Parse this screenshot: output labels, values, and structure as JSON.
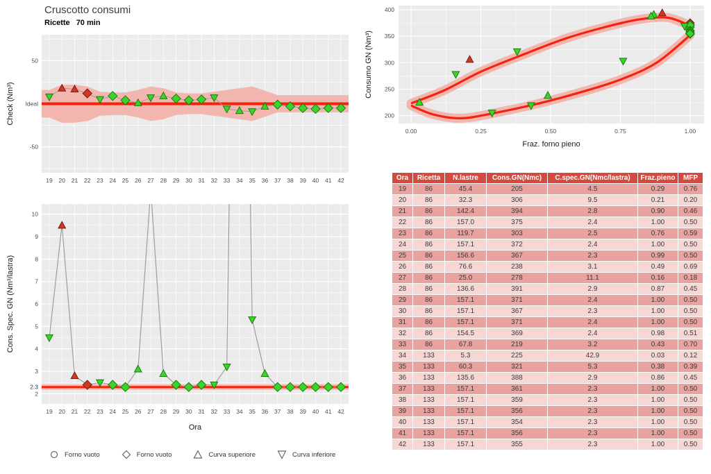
{
  "header": {
    "title": "Cruscotto consumi",
    "subtitle_label": "Ricette",
    "subtitle_value": "70 min"
  },
  "colors": {
    "accent_red": "#f2230f",
    "band_pink": "#f2b6ae",
    "marker_green": "#3bd42a",
    "marker_green_stroke": "#1d7a0e",
    "marker_red": "#cb3a28",
    "marker_red_stroke": "#7e150c",
    "panel_bg": "#ebebeb",
    "grid": "#ffffff",
    "table_header_bg": "#d6493f",
    "row_dark": "#e9a29d",
    "row_light": "#f6d7d3"
  },
  "legend": {
    "items": [
      {
        "shape": "circle",
        "label": "Forno vuoto"
      },
      {
        "shape": "diamond",
        "label": "Forno vuoto"
      },
      {
        "shape": "triangle-up",
        "label": "Curva superiore"
      },
      {
        "shape": "triangle-down",
        "label": "Curva inferiore"
      }
    ]
  },
  "table": {
    "headers": [
      "Ora",
      "Ricetta",
      "N.lastre",
      "Cons.GN(Nmc)",
      "C.spec.GN(Nmc/lastra)",
      "Fraz.pieno",
      "MFP"
    ],
    "rows": [
      [
        "19",
        "86",
        "45.4",
        "205",
        "4.5",
        "0.29",
        "0.76"
      ],
      [
        "20",
        "86",
        "32.3",
        "306",
        "9.5",
        "0.21",
        "0.20"
      ],
      [
        "21",
        "86",
        "142.4",
        "394",
        "2.8",
        "0.90",
        "0.46"
      ],
      [
        "22",
        "86",
        "157.0",
        "375",
        "2.4",
        "1.00",
        "0.50"
      ],
      [
        "23",
        "86",
        "119.7",
        "303",
        "2.5",
        "0.76",
        "0.59"
      ],
      [
        "24",
        "86",
        "157.1",
        "372",
        "2.4",
        "1.00",
        "0.50"
      ],
      [
        "25",
        "86",
        "156.6",
        "367",
        "2.3",
        "0.99",
        "0.50"
      ],
      [
        "26",
        "86",
        "76.6",
        "238",
        "3.1",
        "0.49",
        "0.69"
      ],
      [
        "27",
        "86",
        "25.0",
        "278",
        "11.1",
        "0.16",
        "0.18"
      ],
      [
        "28",
        "86",
        "136.6",
        "391",
        "2.9",
        "0.87",
        "0.45"
      ],
      [
        "29",
        "86",
        "157.1",
        "371",
        "2.4",
        "1.00",
        "0.50"
      ],
      [
        "30",
        "86",
        "157.1",
        "367",
        "2.3",
        "1.00",
        "0.50"
      ],
      [
        "31",
        "86",
        "157.1",
        "371",
        "2.4",
        "1.00",
        "0.50"
      ],
      [
        "32",
        "86",
        "154.5",
        "369",
        "2.4",
        "0.98",
        "0.51"
      ],
      [
        "33",
        "86",
        "67.8",
        "219",
        "3.2",
        "0.43",
        "0.70"
      ],
      [
        "34",
        "133",
        "5.3",
        "225",
        "42.9",
        "0.03",
        "0.12"
      ],
      [
        "35",
        "133",
        "60.3",
        "321",
        "5.3",
        "0.38",
        "0.39"
      ],
      [
        "36",
        "133",
        "135.6",
        "388",
        "2.9",
        "0.86",
        "0.45"
      ],
      [
        "37",
        "133",
        "157.1",
        "361",
        "2.3",
        "1.00",
        "0.50"
      ],
      [
        "38",
        "133",
        "157.1",
        "359",
        "2.3",
        "1.00",
        "0.50"
      ],
      [
        "39",
        "133",
        "157.1",
        "356",
        "2.3",
        "1.00",
        "0.50"
      ],
      [
        "40",
        "133",
        "157.1",
        "354",
        "2.3",
        "1.00",
        "0.50"
      ],
      [
        "41",
        "133",
        "157.1",
        "356",
        "2.3",
        "1.00",
        "0.50"
      ],
      [
        "42",
        "133",
        "157.1",
        "355",
        "2.3",
        "1.00",
        "0.50"
      ]
    ]
  },
  "chart_data": [
    {
      "type": "scatter",
      "name": "check",
      "title": "",
      "ylabel": "Check (Nm³)",
      "xlabel": "",
      "x": [
        19,
        20,
        21,
        22,
        23,
        24,
        25,
        26,
        27,
        28,
        29,
        30,
        31,
        32,
        33,
        34,
        35,
        36,
        37,
        38,
        39,
        40,
        41,
        42
      ],
      "values": [
        8,
        18,
        17,
        12,
        5,
        9,
        4,
        1,
        7,
        9,
        6,
        4,
        5,
        7,
        -6,
        -8,
        -9,
        -3,
        -1,
        -3,
        -5,
        -6,
        -5,
        -5
      ],
      "band_halfwidth": [
        16,
        22,
        22,
        20,
        14,
        13,
        13,
        16,
        20,
        18,
        13,
        12,
        12,
        14,
        16,
        18,
        20,
        15,
        10,
        10,
        10,
        10,
        10,
        10
      ],
      "ideal_value": 0,
      "ideal_label": "Ideal",
      "yticks": [
        -50,
        50
      ],
      "ylim": [
        -80,
        80
      ],
      "marker_shapes": [
        "td",
        "tu",
        "tu",
        "d",
        "td",
        "d",
        "d",
        "tu",
        "td",
        "tu",
        "d",
        "d",
        "d",
        "td",
        "td",
        "tu",
        "td",
        "tu",
        "d",
        "d",
        "d",
        "d",
        "d",
        "d"
      ],
      "marker_colors": [
        "green",
        "red",
        "red",
        "red",
        "green",
        "green",
        "green",
        "green",
        "green",
        "green",
        "green",
        "green",
        "green",
        "green",
        "green",
        "green",
        "green",
        "green",
        "green",
        "green",
        "green",
        "green",
        "green",
        "green"
      ]
    },
    {
      "type": "line",
      "name": "spec",
      "title": "",
      "ylabel": "Cons. Spec. GN (Nm³/lastra)",
      "xlabel": "Ora",
      "x": [
        19,
        20,
        21,
        22,
        23,
        24,
        25,
        26,
        27,
        28,
        29,
        30,
        31,
        32,
        33,
        34,
        35,
        36,
        37,
        38,
        39,
        40,
        41,
        42
      ],
      "values": [
        4.5,
        9.5,
        2.8,
        2.4,
        2.5,
        2.4,
        2.3,
        3.1,
        11.1,
        2.9,
        2.4,
        2.3,
        2.4,
        2.4,
        3.2,
        42.9,
        5.3,
        2.9,
        2.3,
        2.3,
        2.3,
        2.3,
        2.3,
        2.3
      ],
      "reference": 2.3,
      "reference_band": 0.12,
      "ylim": [
        1.55,
        10.45
      ],
      "yticks": [
        2,
        3,
        4,
        5,
        6,
        7,
        8,
        9,
        10
      ],
      "extra_ytick": 2.3,
      "marker_shapes": [
        "td",
        "tu",
        "tu",
        "d",
        "td",
        "d",
        "d",
        "tu",
        "td",
        "tu",
        "d",
        "d",
        "d",
        "td",
        "td",
        "tu",
        "td",
        "tu",
        "d",
        "d",
        "d",
        "d",
        "d",
        "d"
      ],
      "marker_colors": [
        "green",
        "red",
        "red",
        "red",
        "green",
        "green",
        "green",
        "green",
        "green",
        "green",
        "green",
        "green",
        "green",
        "green",
        "green",
        "green",
        "green",
        "green",
        "green",
        "green",
        "green",
        "green",
        "green",
        "green"
      ]
    },
    {
      "type": "scatter",
      "name": "loop",
      "title": "",
      "ylabel": "Consumo GN (Nm³)",
      "xlabel": "Fraz. forno pieno",
      "x": [
        0.29,
        0.21,
        0.9,
        1.0,
        0.76,
        1.0,
        0.99,
        0.49,
        0.16,
        0.87,
        1.0,
        1.0,
        1.0,
        0.98,
        0.43,
        0.03,
        0.38,
        0.86,
        1.0,
        1.0,
        1.0,
        1.0,
        1.0,
        1.0
      ],
      "y": [
        205,
        306,
        394,
        375,
        303,
        372,
        367,
        238,
        278,
        391,
        371,
        367,
        371,
        369,
        219,
        225,
        321,
        388,
        361,
        359,
        356,
        354,
        356,
        355
      ],
      "xtick_labels": [
        "0.00",
        "0.25",
        "0.50",
        "0.75",
        "1.00"
      ],
      "xticks": [
        0,
        0.25,
        0.5,
        0.75,
        1
      ],
      "yticks": [
        200,
        250,
        300,
        350,
        400
      ],
      "xlim": [
        0,
        1
      ],
      "ylim": [
        185,
        408
      ],
      "upper_curve": [
        [
          0,
          223
        ],
        [
          0.12,
          248
        ],
        [
          0.25,
          283
        ],
        [
          0.4,
          315
        ],
        [
          0.55,
          345
        ],
        [
          0.7,
          368
        ],
        [
          0.82,
          382
        ],
        [
          0.92,
          385
        ],
        [
          1.0,
          370
        ]
      ],
      "lower_curve": [
        [
          0,
          219
        ],
        [
          0.08,
          202
        ],
        [
          0.18,
          195
        ],
        [
          0.3,
          205
        ],
        [
          0.45,
          222
        ],
        [
          0.6,
          243
        ],
        [
          0.75,
          268
        ],
        [
          0.88,
          300
        ],
        [
          1.0,
          352
        ]
      ],
      "marker_shapes": [
        "td",
        "tu",
        "tu",
        "d",
        "td",
        "d",
        "d",
        "tu",
        "td",
        "tu",
        "d",
        "d",
        "d",
        "td",
        "td",
        "tu",
        "td",
        "tu",
        "d",
        "d",
        "d",
        "d",
        "d",
        "d"
      ],
      "marker_colors": [
        "green",
        "red",
        "red",
        "red",
        "green",
        "green",
        "green",
        "green",
        "green",
        "green",
        "green",
        "green",
        "green",
        "green",
        "green",
        "green",
        "green",
        "green",
        "green",
        "green",
        "green",
        "green",
        "green",
        "green"
      ]
    }
  ]
}
